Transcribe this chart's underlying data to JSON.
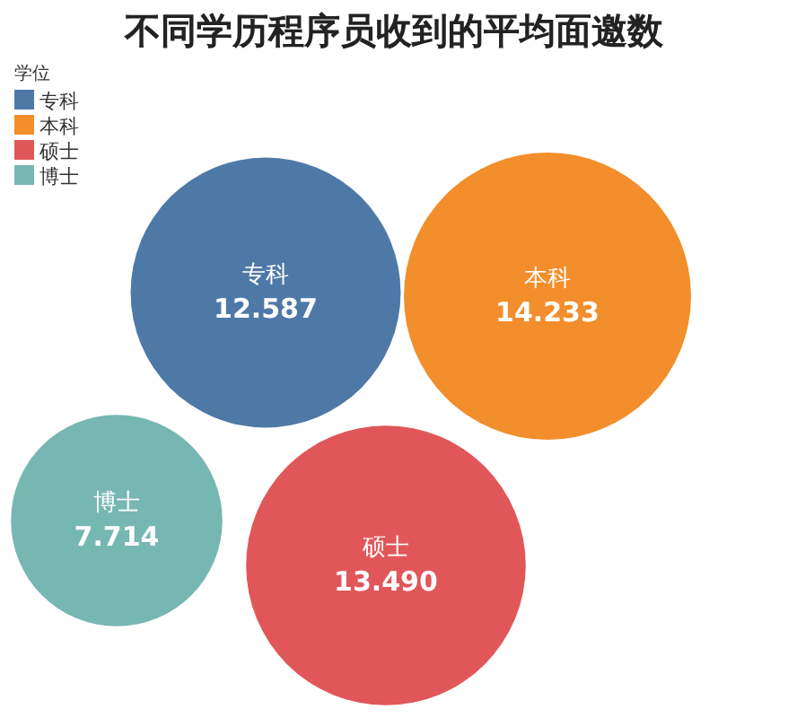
{
  "chart_data": {
    "type": "other",
    "title": "不同学历程序员收到的平均面邀数",
    "legend_title": "学位",
    "legend": "top left",
    "series": [
      {
        "name": "专科",
        "color": "#4e79a7",
        "values": [
          12.587
        ],
        "value_labels": [
          "12.587"
        ]
      },
      {
        "name": "本科",
        "color": "#f28e2b",
        "values": [
          14.233
        ],
        "value_labels": [
          "14.233"
        ]
      },
      {
        "name": "硕士",
        "color": "#e15759",
        "values": [
          13.49
        ],
        "value_labels": [
          "13.490"
        ]
      },
      {
        "name": "博士",
        "color": "#76b7b2",
        "values": [
          7.714
        ],
        "value_labels": [
          "7.714"
        ]
      }
    ]
  }
}
